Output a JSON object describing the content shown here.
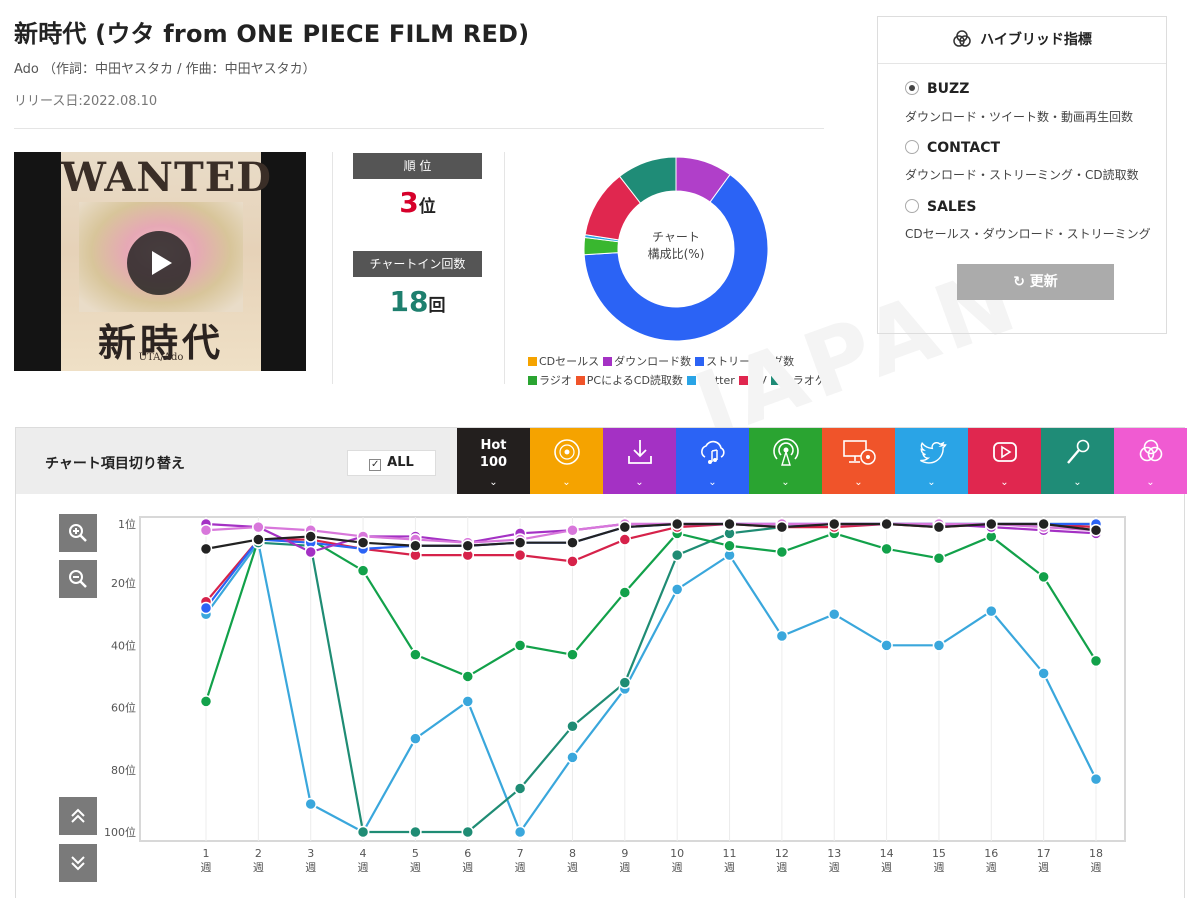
{
  "song": {
    "title": "新時代 (ウタ from ONE PIECE FILM RED)",
    "credit": "Ado （作詞：中田ヤスタカ / 作曲：中田ヤスタカ）",
    "release": "リリース日:2022.08.10"
  },
  "thumbnail": {
    "poster_top": "WANTED",
    "poster_kanji": "新時代",
    "poster_sub": "UTA/Ado"
  },
  "stats": {
    "rank_label": "順 位",
    "rank_value": "3",
    "rank_unit": "位",
    "rank_color": "#d6002a",
    "chartin_label": "チャートイン回数",
    "chartin_value": "18",
    "chartin_unit": "回",
    "chartin_color": "#1e7f6e"
  },
  "donut": {
    "center_line1": "チャート",
    "center_line2": "構成比(%)",
    "segments": [
      {
        "name": "ダウンロード数",
        "value": 10,
        "color": "#b03fc9"
      },
      {
        "name": "ストリーミング数",
        "value": 64,
        "color": "#2b63f5"
      },
      {
        "name": "ラジオ",
        "value": 3,
        "color": "#39b72f"
      },
      {
        "name": "Twitter",
        "value": 0.5,
        "color": "#2aa4e6"
      },
      {
        "name": "MV",
        "value": 12,
        "color": "#e0274f"
      },
      {
        "name": "カラオケ",
        "value": 10.5,
        "color": "#1f8c77"
      }
    ],
    "legend": [
      {
        "name": "CDセールス",
        "color": "#f5a300"
      },
      {
        "name": "ダウンロード数",
        "color": "#a431c4"
      },
      {
        "name": "ストリーミング数",
        "color": "#2b63f5"
      },
      {
        "name": "ラジオ",
        "color": "#2aa431"
      },
      {
        "name": "PCによるCD読取数",
        "color": "#f0542a"
      },
      {
        "name": "Twitter",
        "color": "#2aa4e6"
      },
      {
        "name": "MV",
        "color": "#e0274f"
      },
      {
        "name": "カラオケ",
        "color": "#1f8c77"
      }
    ]
  },
  "hybrid": {
    "title": "ハイブリッド指標",
    "options": [
      {
        "label": "BUZZ",
        "desc": "ダウンロード・ツイート数・動画再生回数",
        "selected": true
      },
      {
        "label": "CONTACT",
        "desc": "ダウンロード・ストリーミング・CD読取数",
        "selected": false
      },
      {
        "label": "SALES",
        "desc": "CDセールス・ダウンロード・ストリーミング",
        "selected": false
      }
    ],
    "update_label": "更新"
  },
  "watermark": "JAPAN",
  "chart_panel": {
    "switch_label": "チャート項目切り替え",
    "all_label": "ALL",
    "all_checked": true,
    "tabs": [
      {
        "name": "hot100",
        "label1": "Hot",
        "label2": "100",
        "color": "#231f1e",
        "icon": "hot100-text"
      },
      {
        "name": "cd-sales",
        "color": "#f5a300",
        "icon": "disc-icon"
      },
      {
        "name": "download",
        "color": "#a431c4",
        "icon": "download-icon"
      },
      {
        "name": "streaming",
        "color": "#2b63f5",
        "icon": "cloud-music-icon"
      },
      {
        "name": "radio",
        "color": "#2aa431",
        "icon": "radio-icon"
      },
      {
        "name": "pc-cd-read",
        "color": "#f0542a",
        "icon": "pc-disc-icon"
      },
      {
        "name": "twitter",
        "color": "#2aa4e6",
        "icon": "twitter-icon"
      },
      {
        "name": "mv",
        "color": "#e0274f",
        "icon": "play-icon"
      },
      {
        "name": "karaoke",
        "color": "#1f8c77",
        "icon": "mic-icon"
      },
      {
        "name": "hybrid",
        "color": "#f05bd2",
        "icon": "hybrid-icon"
      }
    ]
  },
  "chart_data": {
    "type": "line",
    "x": [
      "1\n週",
      "2\n週",
      "3\n週",
      "4\n週",
      "5\n週",
      "6\n週",
      "7\n週",
      "8\n週",
      "9\n週",
      "10\n週",
      "11\n週",
      "12\n週",
      "13\n週",
      "14\n週",
      "15\n週",
      "16\n週",
      "17\n週",
      "18\n週"
    ],
    "y_ticks": [
      "1位",
      "20位",
      "40位",
      "60位",
      "80位",
      "100位"
    ],
    "y_tick_values": [
      1,
      20,
      40,
      60,
      80,
      100
    ],
    "ylim": [
      1,
      100
    ],
    "y_inverted": true,
    "grid": true,
    "series": [
      {
        "key": "twitter",
        "color": "#3aa7dc",
        "values": [
          30,
          7,
          91,
          101,
          70,
          58,
          101,
          76,
          54,
          22,
          11,
          37,
          30,
          40,
          40,
          29,
          49,
          83
        ]
      },
      {
        "key": "karaoke",
        "color": "#1f8c74",
        "values": [
          null,
          7,
          8,
          101,
          101,
          100,
          86,
          66,
          52,
          11,
          4,
          2,
          1,
          1,
          1,
          1,
          1,
          1
        ]
      },
      {
        "key": "radio",
        "color": "#12a14a",
        "values": [
          58,
          6,
          6,
          16,
          43,
          50,
          40,
          43,
          23,
          4,
          8,
          10,
          4,
          9,
          12,
          5,
          18,
          45
        ]
      },
      {
        "key": "mv",
        "color": "#d6224a",
        "values": [
          26,
          6,
          6,
          9,
          11,
          11,
          11,
          13,
          6,
          2,
          1,
          2,
          2,
          1,
          2,
          1,
          1,
          2
        ]
      },
      {
        "key": "streaming",
        "color": "#2b63f5",
        "values": [
          28,
          6,
          7,
          9,
          8,
          8,
          7,
          7,
          2,
          1,
          1,
          1,
          1,
          1,
          1,
          1,
          1,
          1
        ]
      },
      {
        "key": "download",
        "color": "#a431c4",
        "values": [
          1,
          2,
          10,
          5,
          5,
          7,
          4,
          3,
          1,
          1,
          1,
          1,
          1,
          1,
          1,
          2,
          3,
          4
        ]
      },
      {
        "key": "hybrid",
        "color": "#d877db",
        "values": [
          3,
          2,
          3,
          5,
          6,
          7,
          6,
          3,
          1,
          1,
          1,
          1,
          1,
          1,
          1,
          1,
          2,
          3
        ]
      },
      {
        "key": "hot100",
        "color": "#222222",
        "values": [
          9,
          6,
          5,
          7,
          8,
          8,
          7,
          7,
          2,
          1,
          1,
          2,
          1,
          1,
          2,
          1,
          1,
          3
        ]
      }
    ]
  }
}
